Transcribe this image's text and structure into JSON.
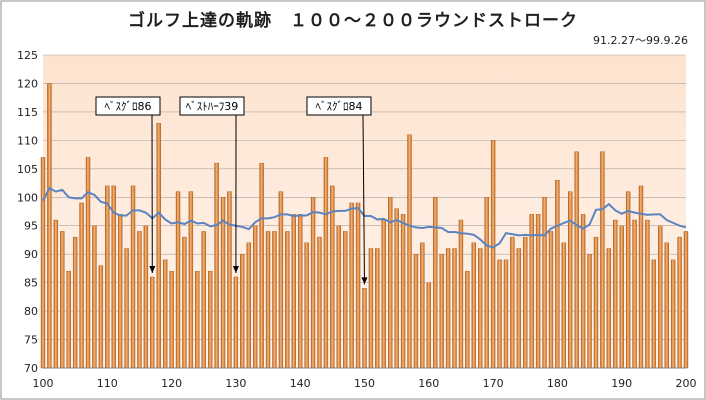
{
  "title": "ゴルフ上達の軌跡　１００～２００ラウンドストローク",
  "date_range": "91.2.27～99.9.26",
  "colors": {
    "plot_bg_top": "#fde3cf",
    "plot_bg_bottom": "#fff5ee",
    "bar": "#d97a2b",
    "bar_light": "#f3b77b",
    "line": "#5b84c0",
    "grid": "#a6a6a6",
    "border": "#8f8f8f"
  },
  "chart_data": {
    "type": "bar",
    "x_start": 100,
    "x": [
      100,
      101,
      102,
      103,
      104,
      105,
      106,
      107,
      108,
      109,
      110,
      111,
      112,
      113,
      114,
      115,
      116,
      117,
      118,
      119,
      120,
      121,
      122,
      123,
      124,
      125,
      126,
      127,
      128,
      129,
      130,
      131,
      132,
      133,
      134,
      135,
      136,
      137,
      138,
      139,
      140,
      141,
      142,
      143,
      144,
      145,
      146,
      147,
      148,
      149,
      150,
      151,
      152,
      153,
      154,
      155,
      156,
      157,
      158,
      159,
      160,
      161,
      162,
      163,
      164,
      165,
      166,
      167,
      168,
      169,
      170,
      171,
      172,
      173,
      174,
      175,
      176,
      177,
      178,
      179,
      180,
      181,
      182,
      183,
      184,
      185,
      186,
      187,
      188,
      189,
      190,
      191,
      192,
      193,
      194,
      195,
      196,
      197,
      198,
      199,
      200
    ],
    "series": [
      {
        "values": [
          107,
          120,
          96,
          94,
          87,
          93,
          99,
          107,
          95,
          88,
          102,
          102,
          97,
          91,
          102,
          94,
          95,
          86,
          113,
          89,
          87,
          101,
          93,
          101,
          87,
          94,
          87,
          106,
          100,
          101,
          86,
          90,
          92,
          95,
          106,
          94,
          94,
          101,
          94,
          97,
          97,
          92,
          100,
          93,
          107,
          102,
          95,
          94,
          99,
          99,
          84,
          91,
          91,
          96,
          100,
          98,
          97,
          111,
          90,
          92,
          85,
          100,
          90,
          91,
          91,
          96,
          87,
          92,
          91,
          100,
          110,
          89,
          89,
          93,
          91,
          93,
          97,
          97,
          100,
          94,
          103,
          92,
          101,
          108,
          97,
          90,
          93,
          108,
          91,
          96,
          95,
          101,
          96,
          102,
          96,
          89,
          95,
          92,
          89,
          93,
          94
        ]
      },
      {
        "type": "line",
        "values": [
          99.4,
          101.6,
          101.0,
          101.3,
          100.0,
          99.8,
          99.8,
          100.9,
          100.4,
          99.2,
          98.9,
          97.3,
          96.8,
          96.8,
          97.7,
          97.7,
          97.3,
          96.3,
          97.3,
          96.1,
          95.4,
          95.6,
          95.3,
          95.9,
          95.4,
          95.5,
          94.9,
          95.1,
          95.9,
          95.2,
          95.0,
          94.8,
          94.4,
          95.6,
          96.3,
          96.3,
          96.5,
          97.0,
          97.0,
          96.7,
          96.8,
          96.8,
          97.4,
          97.3,
          97.0,
          97.5,
          97.6,
          97.6,
          98.0,
          98.1,
          96.7,
          96.7,
          96.1,
          96.2,
          95.6,
          96.0,
          95.5,
          95.0,
          94.7,
          94.6,
          94.8,
          94.7,
          94.6,
          93.9,
          93.9,
          93.7,
          93.6,
          93.4,
          92.6,
          91.5,
          91.2,
          91.9,
          93.7,
          93.5,
          93.3,
          93.4,
          93.3,
          93.4,
          93.3,
          94.5,
          95.0,
          95.5,
          95.9,
          95.1,
          94.5,
          95.2,
          97.8,
          97.9,
          98.8,
          97.7,
          97.1,
          97.6,
          97.3,
          97.1,
          96.9,
          97.0,
          97.0,
          96.0,
          95.5,
          95.0,
          94.7
        ]
      }
    ],
    "ylim": [
      70,
      125
    ],
    "yticks": [
      70,
      75,
      80,
      85,
      90,
      95,
      100,
      105,
      110,
      115,
      120,
      125
    ],
    "xticks": [
      100,
      110,
      120,
      130,
      140,
      150,
      160,
      170,
      180,
      190,
      200
    ],
    "grid": true,
    "annotations": [
      {
        "text": "ﾍﾞｽｸﾞﾛ86",
        "x": 117,
        "y": 86
      },
      {
        "text": "ﾍﾞｽﾄﾊｰﾌ39",
        "x": 130,
        "y": 86
      },
      {
        "text": "ﾍﾞｽｸﾞﾛ84",
        "x": 150,
        "y": 84
      }
    ]
  }
}
